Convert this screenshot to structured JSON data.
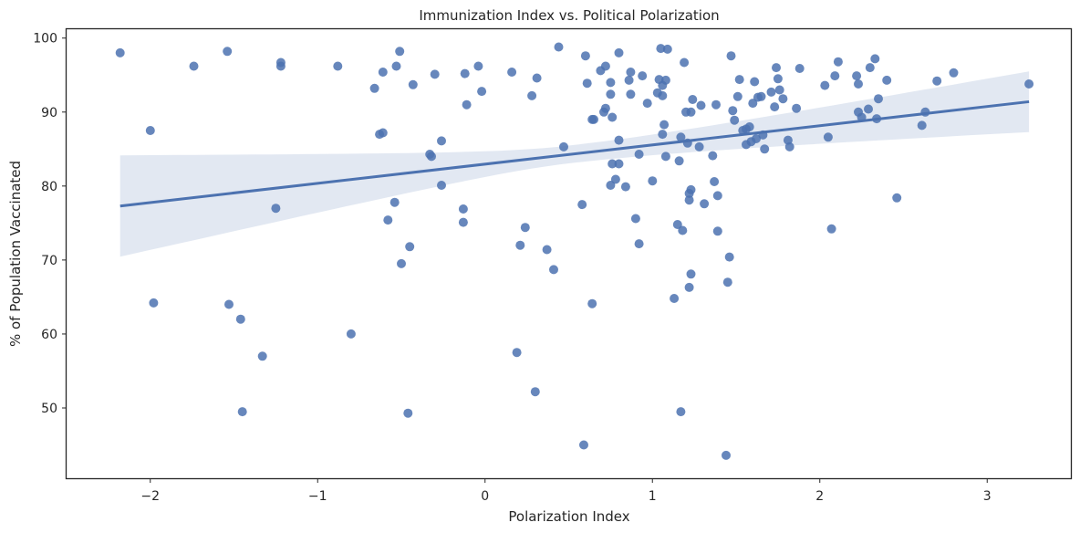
{
  "chart_data": {
    "type": "scatter",
    "title": "Immunization Index vs. Political Polarization",
    "xlabel": "Polarization Index",
    "ylabel": "% of Population Vaccinated",
    "xlim": [
      -2.5,
      3.5
    ],
    "ylim": [
      40.5,
      101.2
    ],
    "xticks": [
      -2,
      -1,
      0,
      1,
      2,
      3
    ],
    "xtick_labels": [
      "−2",
      "−1",
      "0",
      "1",
      "2",
      "3"
    ],
    "yticks": [
      50,
      60,
      70,
      80,
      90,
      100
    ],
    "ytick_labels": [
      "50",
      "60",
      "70",
      "80",
      "90",
      "100"
    ],
    "grid": false,
    "colors": {
      "points": "#4c72b0",
      "band": "#4c72b0",
      "frame": "#262626"
    },
    "regression": {
      "x": [
        -2.18,
        3.25
      ],
      "y": [
        77.3,
        91.4
      ],
      "ci_lower": [
        69.8,
        87.3
      ],
      "ci_upper": [
        83.5,
        95.5
      ],
      "ci_mid_lower": [
        0.5,
        83.6
      ],
      "ci_mid_upper": [
        0.5,
        86.0
      ]
    },
    "points": [
      [
        -2.18,
        98.0
      ],
      [
        -2.0,
        87.5
      ],
      [
        -1.98,
        64.2
      ],
      [
        -1.74,
        96.2
      ],
      [
        -1.54,
        98.2
      ],
      [
        -1.53,
        64.0
      ],
      [
        -1.46,
        62.0
      ],
      [
        -1.45,
        49.5
      ],
      [
        -1.33,
        57.0
      ],
      [
        -1.25,
        77.0
      ],
      [
        -1.22,
        96.7
      ],
      [
        -1.22,
        96.2
      ],
      [
        -0.88,
        96.2
      ],
      [
        -0.8,
        60.0
      ],
      [
        -0.66,
        93.2
      ],
      [
        -0.63,
        87.0
      ],
      [
        -0.61,
        95.4
      ],
      [
        -0.61,
        87.2
      ],
      [
        -0.58,
        75.4
      ],
      [
        -0.54,
        77.8
      ],
      [
        -0.53,
        96.2
      ],
      [
        -0.51,
        98.2
      ],
      [
        -0.5,
        69.5
      ],
      [
        -0.45,
        71.8
      ],
      [
        -0.46,
        49.3
      ],
      [
        -0.43,
        93.7
      ],
      [
        -0.33,
        84.3
      ],
      [
        -0.32,
        84.0
      ],
      [
        -0.3,
        95.1
      ],
      [
        -0.26,
        86.1
      ],
      [
        -0.26,
        80.1
      ],
      [
        -0.13,
        76.9
      ],
      [
        -0.13,
        75.1
      ],
      [
        -0.12,
        95.2
      ],
      [
        -0.11,
        91.0
      ],
      [
        -0.04,
        96.2
      ],
      [
        -0.02,
        92.8
      ],
      [
        0.16,
        95.4
      ],
      [
        0.19,
        57.5
      ],
      [
        0.21,
        72.0
      ],
      [
        0.24,
        74.4
      ],
      [
        0.28,
        92.2
      ],
      [
        0.3,
        52.2
      ],
      [
        0.31,
        94.6
      ],
      [
        0.37,
        71.4
      ],
      [
        0.41,
        68.7
      ],
      [
        0.44,
        98.8
      ],
      [
        0.47,
        85.3
      ],
      [
        0.58,
        77.5
      ],
      [
        0.59,
        45.0
      ],
      [
        0.6,
        97.6
      ],
      [
        0.61,
        93.9
      ],
      [
        0.64,
        89.0
      ],
      [
        0.65,
        89.0
      ],
      [
        0.64,
        64.1
      ],
      [
        0.69,
        95.6
      ],
      [
        0.71,
        90.0
      ],
      [
        0.72,
        90.5
      ],
      [
        0.72,
        96.2
      ],
      [
        0.75,
        92.4
      ],
      [
        0.75,
        80.1
      ],
      [
        0.75,
        94.0
      ],
      [
        0.76,
        89.3
      ],
      [
        0.76,
        83.0
      ],
      [
        0.78,
        80.9
      ],
      [
        0.8,
        98.0
      ],
      [
        0.8,
        86.2
      ],
      [
        0.8,
        83.0
      ],
      [
        0.84,
        79.9
      ],
      [
        0.86,
        94.3
      ],
      [
        0.87,
        95.4
      ],
      [
        0.87,
        92.4
      ],
      [
        0.9,
        75.6
      ],
      [
        0.92,
        72.2
      ],
      [
        0.92,
        84.3
      ],
      [
        0.94,
        94.9
      ],
      [
        0.97,
        91.2
      ],
      [
        1.0,
        80.7
      ],
      [
        1.03,
        92.6
      ],
      [
        1.04,
        94.4
      ],
      [
        1.05,
        98.6
      ],
      [
        1.06,
        87.0
      ],
      [
        1.06,
        93.6
      ],
      [
        1.06,
        92.2
      ],
      [
        1.07,
        88.3
      ],
      [
        1.08,
        94.3
      ],
      [
        1.08,
        84.0
      ],
      [
        1.09,
        98.5
      ],
      [
        1.13,
        64.8
      ],
      [
        1.15,
        74.8
      ],
      [
        1.16,
        83.4
      ],
      [
        1.17,
        86.6
      ],
      [
        1.17,
        49.5
      ],
      [
        1.18,
        74.0
      ],
      [
        1.19,
        96.7
      ],
      [
        1.2,
        90.0
      ],
      [
        1.21,
        85.8
      ],
      [
        1.22,
        79.0
      ],
      [
        1.22,
        78.1
      ],
      [
        1.22,
        66.3
      ],
      [
        1.23,
        90.0
      ],
      [
        1.23,
        79.5
      ],
      [
        1.23,
        68.1
      ],
      [
        1.24,
        91.7
      ],
      [
        1.28,
        85.3
      ],
      [
        1.29,
        90.9
      ],
      [
        1.31,
        77.6
      ],
      [
        1.36,
        84.1
      ],
      [
        1.37,
        80.6
      ],
      [
        1.38,
        91.0
      ],
      [
        1.39,
        78.7
      ],
      [
        1.39,
        73.9
      ],
      [
        1.44,
        43.6
      ],
      [
        1.45,
        67.0
      ],
      [
        1.46,
        70.4
      ],
      [
        1.47,
        97.6
      ],
      [
        1.48,
        90.2
      ],
      [
        1.49,
        88.9
      ],
      [
        1.51,
        92.1
      ],
      [
        1.52,
        94.4
      ],
      [
        1.54,
        87.5
      ],
      [
        1.56,
        87.7
      ],
      [
        1.56,
        85.6
      ],
      [
        1.58,
        88.0
      ],
      [
        1.59,
        86.0
      ],
      [
        1.6,
        91.2
      ],
      [
        1.61,
        94.1
      ],
      [
        1.62,
        86.4
      ],
      [
        1.63,
        92.0
      ],
      [
        1.65,
        92.1
      ],
      [
        1.66,
        86.9
      ],
      [
        1.67,
        85.0
      ],
      [
        1.71,
        92.7
      ],
      [
        1.73,
        90.7
      ],
      [
        1.74,
        96.0
      ],
      [
        1.75,
        94.5
      ],
      [
        1.76,
        93.0
      ],
      [
        1.78,
        91.8
      ],
      [
        1.81,
        86.2
      ],
      [
        1.82,
        85.3
      ],
      [
        1.86,
        90.5
      ],
      [
        1.88,
        95.9
      ],
      [
        2.03,
        93.6
      ],
      [
        2.05,
        86.6
      ],
      [
        2.07,
        74.2
      ],
      [
        2.09,
        94.9
      ],
      [
        2.11,
        96.8
      ],
      [
        2.22,
        94.9
      ],
      [
        2.23,
        93.8
      ],
      [
        2.23,
        90.0
      ],
      [
        2.25,
        89.3
      ],
      [
        2.29,
        90.4
      ],
      [
        2.3,
        96.0
      ],
      [
        2.33,
        97.2
      ],
      [
        2.34,
        89.1
      ],
      [
        2.35,
        91.8
      ],
      [
        2.4,
        94.3
      ],
      [
        2.46,
        78.4
      ],
      [
        2.61,
        88.2
      ],
      [
        2.63,
        90.0
      ],
      [
        2.7,
        94.2
      ],
      [
        2.8,
        95.3
      ],
      [
        3.25,
        93.8
      ]
    ]
  }
}
